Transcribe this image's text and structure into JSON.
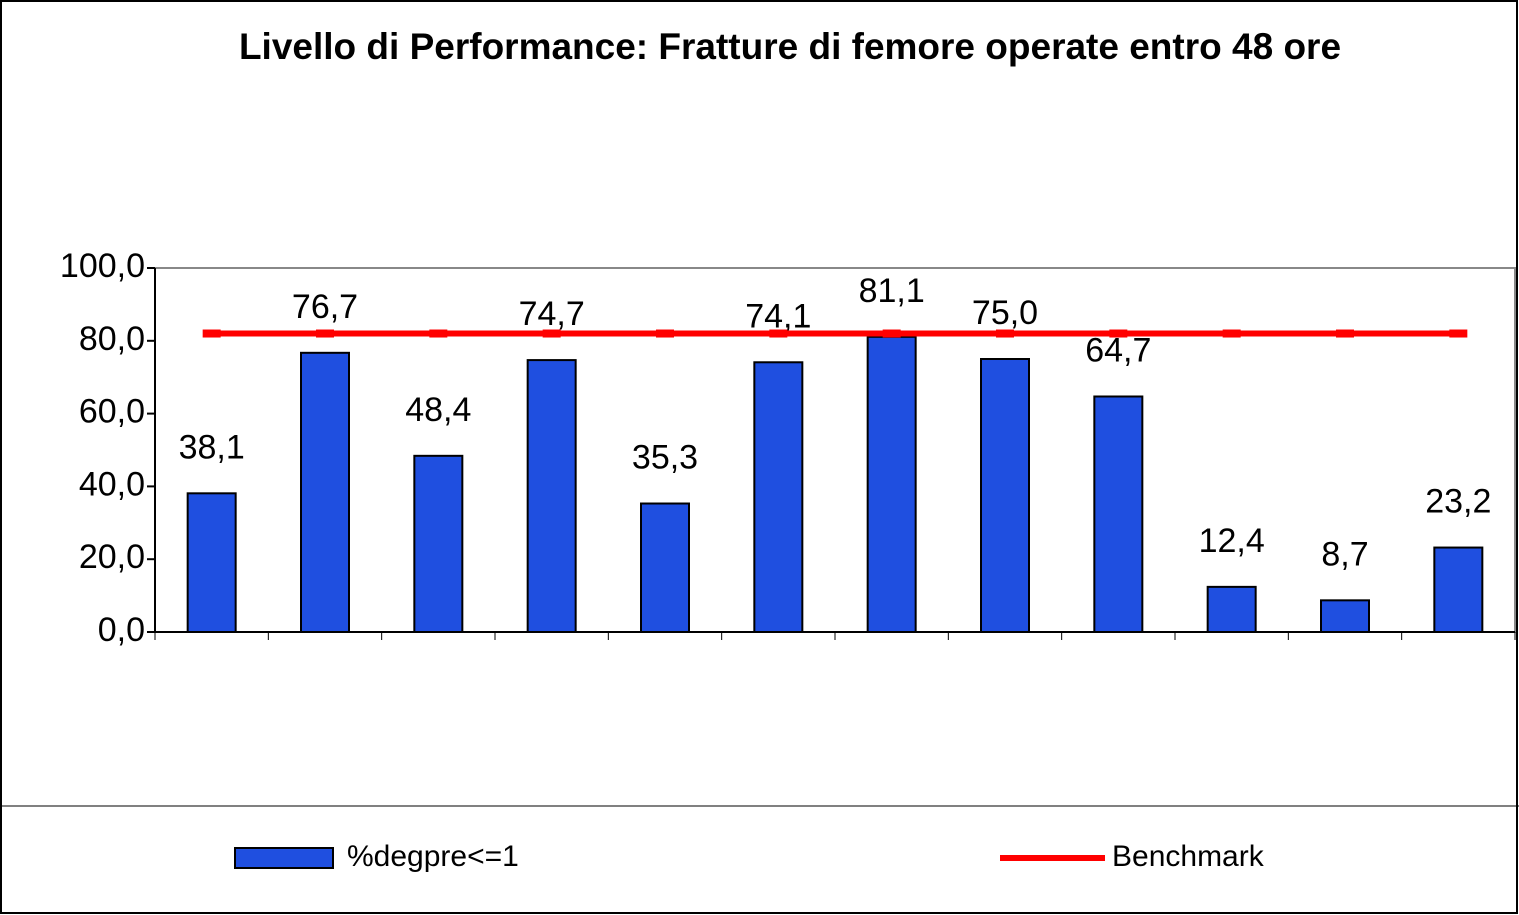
{
  "chart_data": {
    "type": "bar",
    "title": "Livello di Performance: Fratture di femore operate entro 48 ore",
    "categories": [
      null,
      null,
      null,
      null,
      null,
      null,
      null,
      null,
      null,
      null,
      null,
      null
    ],
    "series": [
      {
        "name": "%degpre<=1",
        "type": "bar",
        "color": "#1f4fe0",
        "values": [
          38.1,
          76.7,
          48.4,
          74.7,
          35.3,
          74.1,
          81.1,
          75.0,
          64.7,
          12.4,
          8.7,
          23.2
        ],
        "value_labels": [
          "38,1",
          "76,7",
          "48,4",
          "74,7",
          "35,3",
          "74,1",
          "81,1",
          "75,0",
          "64,7",
          "12,4",
          "8,7",
          "23,2"
        ]
      },
      {
        "name": "Benchmark",
        "type": "line",
        "color": "#ff0000",
        "values": [
          82,
          82,
          82,
          82,
          82,
          82,
          82,
          82,
          82,
          82,
          82,
          82
        ]
      }
    ],
    "ylim": [
      0,
      100
    ],
    "yticks": [
      {
        "value": 0,
        "label": "0,0"
      },
      {
        "value": 20,
        "label": "20,0"
      },
      {
        "value": 40,
        "label": "40,0"
      },
      {
        "value": 60,
        "label": "60,0"
      },
      {
        "value": 80,
        "label": "80,0"
      },
      {
        "value": 100,
        "label": "100,0"
      }
    ],
    "legend": "bottom"
  }
}
